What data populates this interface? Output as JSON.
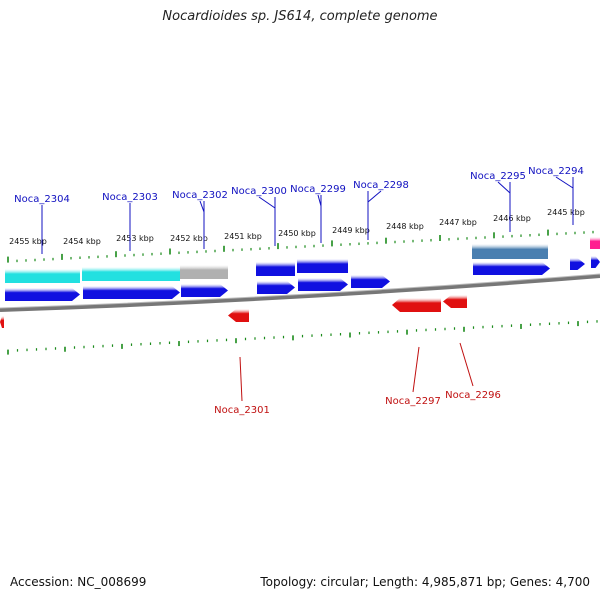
{
  "title": "Nocardioides sp. JS614, complete genome",
  "footer": {
    "accession": "Accession: NC_008699",
    "topology": "Topology: circular; Length: 4,985,871 bp; Genes: 4,700"
  },
  "colors": {
    "forward_gene": "#1010e0",
    "reverse_gene": "#e01010",
    "cds_cyan": "#22e0e0",
    "cds_gray": "#b0b0b0",
    "cds_steel": "#4a7fb0",
    "cds_pink": "#ff2090",
    "ticks": "#1a8a1a",
    "backbone": "#777777",
    "label_forward": "#1010c0",
    "label_reverse": "#c01010"
  },
  "scale_labels": [
    "2455 kbp",
    "2454 kbp",
    "2453 kbp",
    "2452 kbp",
    "2451 kbp",
    "2450 kbp",
    "2449 kbp",
    "2448 kbp",
    "2447 kbp",
    "2446 kbp",
    "2445 kbp"
  ],
  "forward_labels": [
    "Noca_2304",
    "Noca_2303",
    "Noca_2302",
    "Noca_2300",
    "Noca_2299",
    "Noca_2298",
    "Noca_2295",
    "Noca_2294"
  ],
  "reverse_labels": [
    "Noca_2301",
    "Noca_2297",
    "Noca_2296"
  ]
}
